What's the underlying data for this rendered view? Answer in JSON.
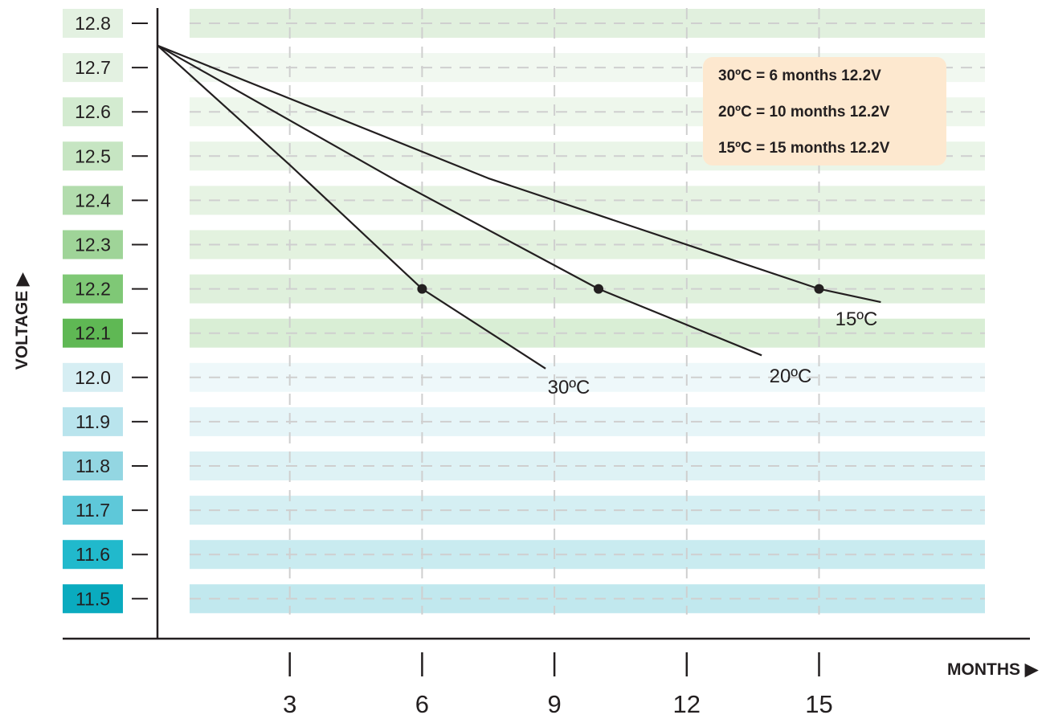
{
  "chart_data": {
    "type": "line",
    "xlabel": "MONTHS ▶",
    "ylabel": "VOLTAGE ▶",
    "x_ticks": [
      3,
      6,
      9,
      12,
      15
    ],
    "y_ticks": [
      "12.8",
      "12.7",
      "12.6",
      "12.5",
      "12.4",
      "12.3",
      "12.2",
      "12.1",
      "12.0",
      "11.9",
      "11.8",
      "11.7",
      "11.6",
      "11.5"
    ],
    "y_values": [
      12.8,
      12.7,
      12.6,
      12.5,
      12.4,
      12.3,
      12.2,
      12.1,
      12.0,
      11.9,
      11.8,
      11.7,
      11.6,
      11.5
    ],
    "y_tick_colors": [
      "#e3f1e1",
      "#e3f1e1",
      "#d3ebd0",
      "#c6e5c2",
      "#b2dcad",
      "#9fd498",
      "#7fc876",
      "#5fb854",
      "#d6eef3",
      "#b9e4ed",
      "#93d6e2",
      "#5ec8d9",
      "#21b9cc",
      "#0aabbf"
    ],
    "band_colors": [
      "#e1f0de",
      "#f1f8f0",
      "#eef7ec",
      "#eaf5e8",
      "#e6f3e3",
      "#e3f2df",
      "#dff0dc",
      "#d9eed5",
      "#eef8fa",
      "#e6f5f8",
      "#def2f5",
      "#d5eff3",
      "#c9ebf0",
      "#c1e8ee"
    ],
    "grid": true,
    "xlim": [
      0,
      18.5
    ],
    "ylim": [
      11.5,
      12.8
    ],
    "series": [
      {
        "name": "30ºC",
        "start": [
          0,
          12.75
        ],
        "points": [
          [
            0,
            12.75
          ],
          [
            3,
            12.48
          ],
          [
            6,
            12.2
          ],
          [
            8.8,
            12.02
          ]
        ],
        "marker": [
          6,
          12.2
        ]
      },
      {
        "name": "20ºC",
        "start": [
          0,
          12.75
        ],
        "points": [
          [
            0,
            12.75
          ],
          [
            5.5,
            12.44
          ],
          [
            10,
            12.2
          ],
          [
            13.7,
            12.05
          ]
        ],
        "marker": [
          10,
          12.2
        ]
      },
      {
        "name": "15ºC",
        "start": [
          0,
          12.75
        ],
        "points": [
          [
            0,
            12.75
          ],
          [
            7.5,
            12.45
          ],
          [
            15,
            12.2
          ],
          [
            16.4,
            12.17
          ]
        ],
        "marker": [
          15,
          12.2
        ]
      }
    ],
    "annotation": {
      "lines": [
        "30ºC = 6 months 12.2V",
        "20ºC = 10 months 12.2V",
        "15ºC = 15 months 12.2V"
      ],
      "background": "#fde8cf"
    },
    "line_color": "#231f20",
    "grid_color": "#cfcfcf"
  }
}
